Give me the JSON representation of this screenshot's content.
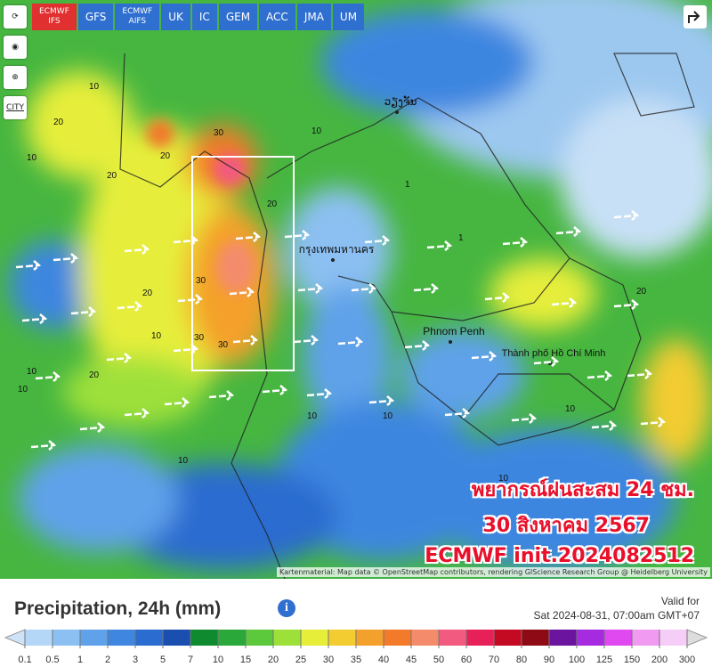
{
  "toolbar": {
    "models": [
      "ECMWF IFS",
      "GFS",
      "ECMWF AIFS",
      "UK",
      "IC",
      "GEM",
      "ACC",
      "JMA",
      "UM"
    ],
    "selected": "ECMWF IFS",
    "city_button": "CITY"
  },
  "map": {
    "places": [
      "ວຽງຈັນ",
      "กรุงเทพมหานคร",
      "Phnom Penh",
      "Thành phố Hồ Chí Minh"
    ],
    "contour_labels": [
      "10",
      "20",
      "10",
      "30",
      "20",
      "30",
      "20",
      "10",
      "30",
      "30",
      "20",
      "10",
      "20",
      "10",
      "20",
      "10",
      "10",
      "10",
      "20",
      "10",
      "1",
      "1",
      "10",
      "10"
    ],
    "attribution": "Kartenmaterial: Map data © OpenStreetMap contributors, rendering GIScience Research Group @ Heidelberg University"
  },
  "overlay": {
    "lines": [
      "พยากรณ์ฝนสะสม 24 ชม.",
      "30 สิงหาคม 2567",
      "ECMWF init.2024082512"
    ]
  },
  "panel": {
    "title": "Precipitation, 24h (mm)",
    "info": "i",
    "valid_label": "Valid for",
    "valid_time": "Sat 2024-08-31, 07:00am GMT+07"
  },
  "legend": {
    "ticks": [
      "0.1",
      "0.5",
      "1",
      "2",
      "3",
      "5",
      "7",
      "10",
      "15",
      "20",
      "25",
      "30",
      "35",
      "40",
      "45",
      "50",
      "60",
      "70",
      "80",
      "90",
      "100",
      "125",
      "150",
      "200",
      "300"
    ],
    "colors": [
      "#b4d7f7",
      "#8cc0f2",
      "#5fa2ea",
      "#3e86e0",
      "#2a6ccf",
      "#1a4fb0",
      "#0f8a2e",
      "#2aa83a",
      "#5cc83c",
      "#9ee03a",
      "#e6ee3a",
      "#f2cc30",
      "#f4a02c",
      "#f27a2a",
      "#f48c6c",
      "#f25a80",
      "#e8205a",
      "#c40a22",
      "#8e0a14",
      "#6a14a0",
      "#a62ae0",
      "#e048f0",
      "#f09af2",
      "#f6cdf6"
    ]
  }
}
